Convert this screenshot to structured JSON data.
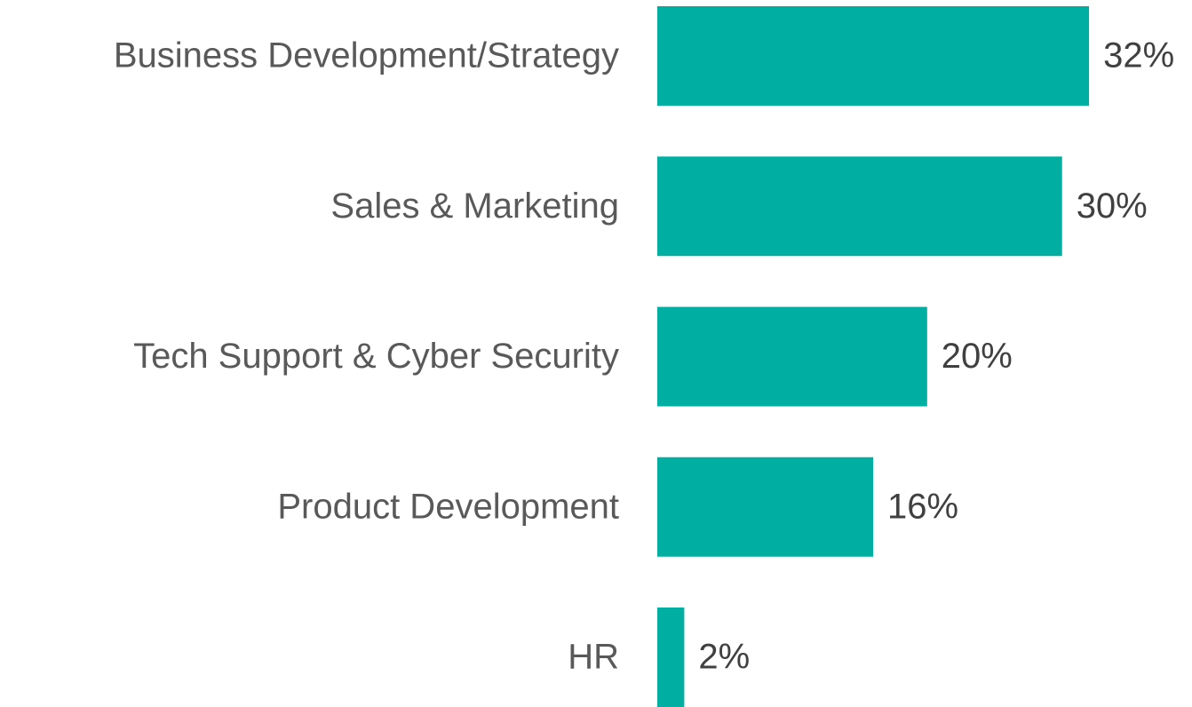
{
  "chart_data": {
    "type": "bar",
    "orientation": "horizontal",
    "categories": [
      "Business Development/Strategy",
      "Sales & Marketing",
      "Tech Support & Cyber Security",
      "Product Development",
      "HR"
    ],
    "values": [
      32,
      30,
      20,
      16,
      2
    ],
    "value_labels": [
      "32%",
      "30%",
      "20%",
      "16%",
      "2%"
    ],
    "color": "#00afa2"
  }
}
